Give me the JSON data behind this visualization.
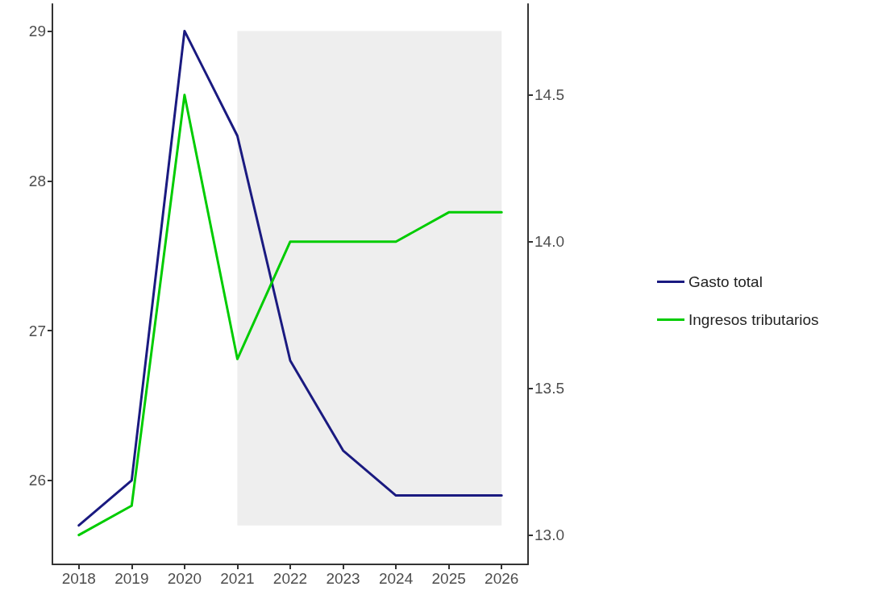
{
  "chart_data": {
    "type": "line",
    "categories": [
      "2018",
      "2019",
      "2020",
      "2021",
      "2022",
      "2023",
      "2024",
      "2025",
      "2026"
    ],
    "series": [
      {
        "name": "Gasto total",
        "color": "#1a1a80",
        "values": [
          25.7,
          26.0,
          29.0,
          28.3,
          26.8,
          26.2,
          25.9,
          25.9,
          25.9
        ]
      },
      {
        "name": "Ingresos tributarios",
        "color": "#00cc00",
        "axis": "y2",
        "values": [
          13.0,
          13.1,
          14.5,
          13.6,
          14.0,
          14.0,
          14.0,
          14.1,
          14.1
        ]
      }
    ],
    "ylim": [
      25.44,
      29.18
    ],
    "yticks": [
      26,
      27,
      28,
      29
    ],
    "y2lim": [
      12.9,
      14.81
    ],
    "y2ticks": [
      {
        "value": 13.0,
        "label": "13.0"
      },
      {
        "value": 13.5,
        "label": "13.5"
      },
      {
        "value": 14.0,
        "label": "14.0"
      },
      {
        "value": 14.5,
        "label": "14.5"
      }
    ],
    "bands": [
      {
        "axis": "x",
        "from": "2021",
        "to": "2026",
        "color": "#eeeeee"
      }
    ],
    "grid": false,
    "legend": "right",
    "marker": "none",
    "line_style": "solid"
  }
}
